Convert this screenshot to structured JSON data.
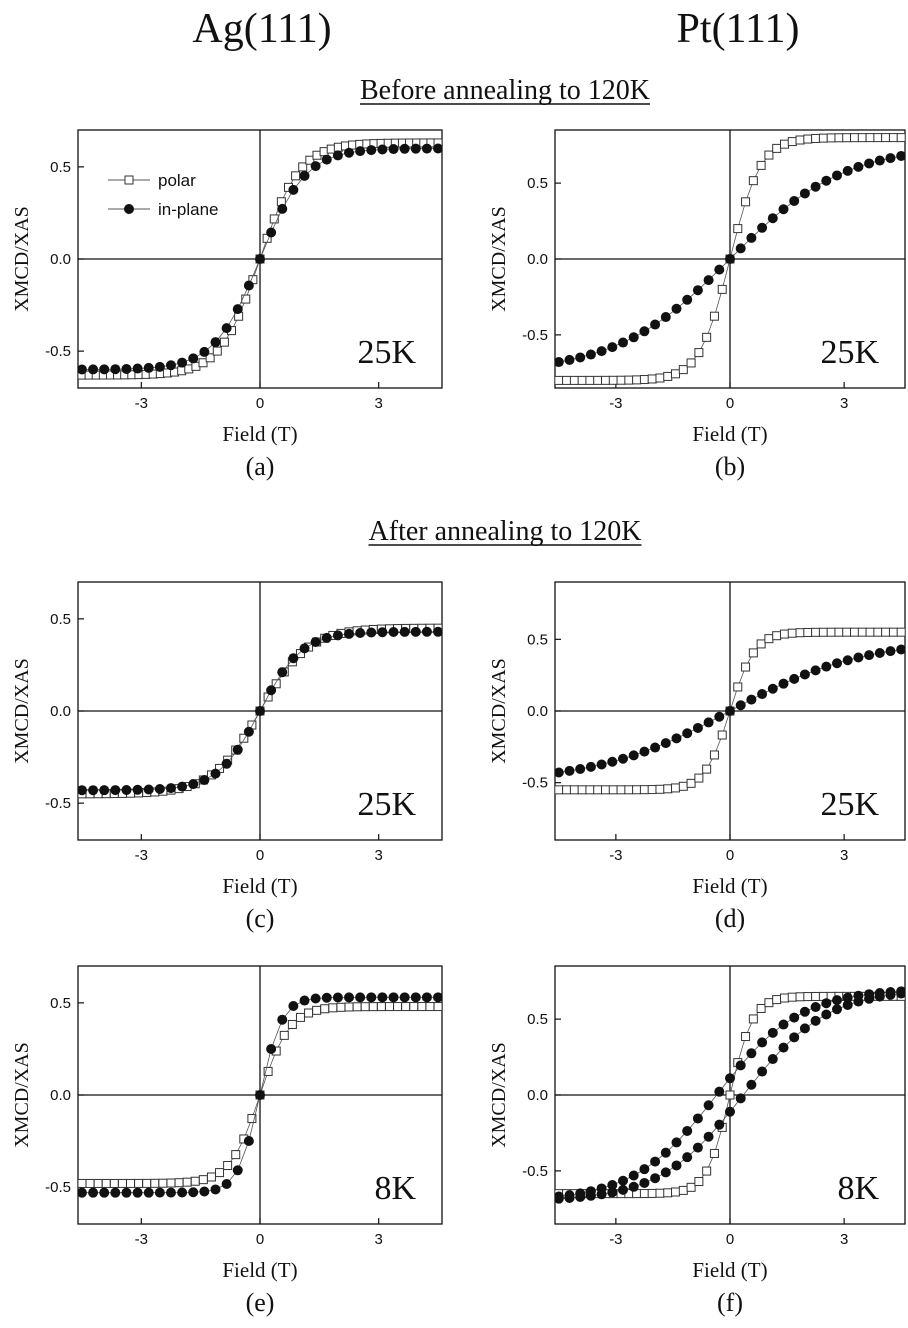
{
  "headers": {
    "left_column": "Ag(111)",
    "right_column": "Pt(111)",
    "section_before": "Before annealing to 120K",
    "section_after": "After annealing to 120K"
  },
  "colors": {
    "axis": "#111111",
    "polar_fill": "#ffffff",
    "inplane_fill": "#111111"
  },
  "chart_data": [
    {
      "id": "a",
      "type": "scatter",
      "panel_label": "(a)",
      "temperature_label": "25K",
      "xlabel": "Field (T)",
      "ylabel": "XMCD/XAS",
      "xlim": [
        -4.6,
        4.6
      ],
      "ylim": [
        -0.7,
        0.7
      ],
      "xticks": [
        -3,
        0,
        3
      ],
      "yticks": [
        -0.5,
        0.0,
        0.5
      ],
      "ytick_labels": [
        "-0.5",
        "0.0",
        "0.5"
      ],
      "legend": {
        "position": "top-left",
        "entries": [
          "polar",
          "in-plane"
        ]
      },
      "series": [
        {
          "name": "polar",
          "marker": "open-square",
          "sat": 0.63,
          "scale": 1.0,
          "steps": 50
        },
        {
          "name": "in-plane",
          "marker": "filled-circle",
          "sat": 0.6,
          "scale": 1.15,
          "steps": 32
        }
      ]
    },
    {
      "id": "b",
      "type": "scatter",
      "panel_label": "(b)",
      "temperature_label": "25K",
      "xlabel": "Field (T)",
      "ylabel": "XMCD/XAS",
      "xlim": [
        -4.6,
        4.6
      ],
      "ylim": [
        -0.85,
        0.85
      ],
      "xticks": [
        -3,
        0,
        3
      ],
      "yticks": [
        -0.5,
        0.0,
        0.5
      ],
      "ytick_labels": [
        "-0.5",
        "0.0",
        "0.5"
      ],
      "series": [
        {
          "name": "polar",
          "marker": "open-square",
          "sat": 0.8,
          "scale": 0.8,
          "steps": 44
        },
        {
          "name": "in-plane",
          "marker": "filled-circle",
          "sat": 0.75,
          "scale": 3.0,
          "steps": 32
        }
      ]
    },
    {
      "id": "c",
      "type": "scatter",
      "panel_label": "(c)",
      "temperature_label": "25K",
      "xlabel": "Field (T)",
      "ylabel": "XMCD/XAS",
      "xlim": [
        -4.6,
        4.6
      ],
      "ylim": [
        -0.7,
        0.7
      ],
      "xticks": [
        -3,
        0,
        3
      ],
      "yticks": [
        -0.5,
        0.0,
        0.5
      ],
      "ytick_labels": [
        "-0.5",
        "0.0",
        "0.5"
      ],
      "series": [
        {
          "name": "polar",
          "marker": "open-square",
          "sat": 0.45,
          "scale": 1.2,
          "steps": 44
        },
        {
          "name": "in-plane",
          "marker": "filled-circle",
          "sat": 0.43,
          "scale": 1.05,
          "steps": 32
        }
      ]
    },
    {
      "id": "d",
      "type": "scatter",
      "panel_label": "(d)",
      "temperature_label": "25K",
      "xlabel": "Field (T)",
      "ylabel": "XMCD/XAS",
      "xlim": [
        -4.6,
        4.6
      ],
      "ylim": [
        -0.9,
        0.9
      ],
      "xticks": [
        -3,
        0,
        3
      ],
      "yticks": [
        -0.5,
        0.0,
        0.5
      ],
      "ytick_labels": [
        "-0.5",
        "0.0",
        "0.5"
      ],
      "series": [
        {
          "name": "polar",
          "marker": "open-square",
          "sat": 0.55,
          "scale": 0.65,
          "steps": 44
        },
        {
          "name": "in-plane",
          "marker": "filled-circle",
          "sat": 0.5,
          "scale": 3.5,
          "steps": 32
        }
      ]
    },
    {
      "id": "e",
      "type": "scatter",
      "panel_label": "(e)",
      "temperature_label": "8K",
      "xlabel": "Field (T)",
      "ylabel": "XMCD/XAS",
      "xlim": [
        -4.6,
        4.6
      ],
      "ylim": [
        -0.7,
        0.7
      ],
      "xticks": [
        -3,
        0,
        3
      ],
      "yticks": [
        -0.5,
        0.0,
        0.5
      ],
      "ytick_labels": [
        "-0.5",
        "0.0",
        "0.5"
      ],
      "series": [
        {
          "name": "polar",
          "marker": "open-square",
          "sat": 0.48,
          "scale": 0.75,
          "steps": 44
        },
        {
          "name": "in-plane",
          "marker": "filled-circle",
          "sat": 0.53,
          "scale": 0.55,
          "steps": 32
        }
      ]
    },
    {
      "id": "f",
      "type": "scatter",
      "panel_label": "(f)",
      "temperature_label": "8K",
      "xlabel": "Field (T)",
      "ylabel": "XMCD/XAS",
      "xlim": [
        -4.6,
        4.6
      ],
      "ylim": [
        -0.85,
        0.85
      ],
      "xticks": [
        -3,
        0,
        3
      ],
      "yticks": [
        -0.5,
        0.0,
        0.5
      ],
      "ytick_labels": [
        "-0.5",
        "0.0",
        "0.5"
      ],
      "series": [
        {
          "name": "polar",
          "marker": "open-square",
          "sat": 0.65,
          "scale": 0.6,
          "steps": 44
        },
        {
          "name": "in-plane",
          "marker": "filled-circle",
          "sat": 0.7,
          "scale": 2.2,
          "shift": 0.35,
          "hysteresis": true,
          "steps": 32
        }
      ]
    }
  ]
}
